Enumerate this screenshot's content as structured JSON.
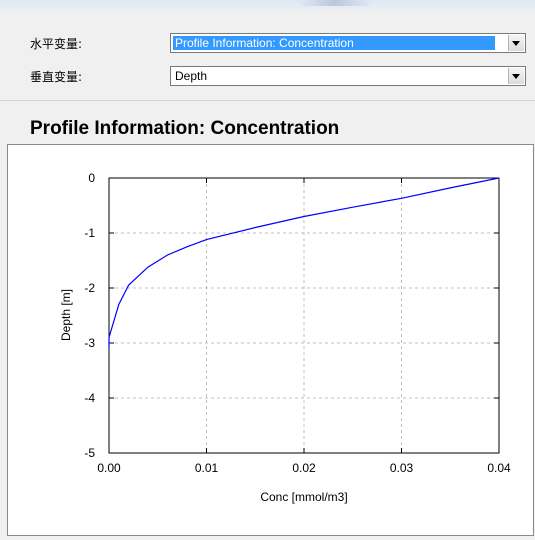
{
  "selectors": {
    "horizontal": {
      "label": "水平变量:",
      "value": "Profile Information:  Concentration"
    },
    "vertical": {
      "label": "垂直变量:",
      "value": "Depth"
    }
  },
  "plot": {
    "title": "Profile Information:  Concentration"
  },
  "icons": {
    "dropdown": "chevron-down-icon"
  },
  "colors": {
    "line": "#0000ff",
    "selection": "#3399ff"
  },
  "chart_data": {
    "type": "line",
    "title": "Profile Information:  Concentration",
    "xlabel": "Conc [mmol/m3]",
    "ylabel": "Depth [m]",
    "xlim": [
      0,
      0.04
    ],
    "ylim": [
      -5,
      0
    ],
    "grid": true,
    "xticks": [
      0,
      0.01,
      0.02,
      0.03,
      0.04
    ],
    "xtick_labels": [
      "0.00",
      "0.01",
      "0.02",
      "0.03",
      "0.04"
    ],
    "yticks": [
      0,
      -1,
      -2,
      -3,
      -4,
      -5
    ],
    "ytick_labels": [
      "0",
      "-1",
      "-2",
      "-3",
      "-4",
      "-5"
    ],
    "series": [
      {
        "x": [
          0.04,
          0.035,
          0.03,
          0.025,
          0.02,
          0.015,
          0.01,
          0.008,
          0.006,
          0.004,
          0.002,
          0.001,
          0.0,
          0.0
        ],
        "y": [
          0.0,
          -0.18,
          -0.37,
          -0.53,
          -0.7,
          -0.9,
          -1.12,
          -1.25,
          -1.4,
          -1.62,
          -1.95,
          -2.3,
          -2.9,
          -3.1
        ]
      }
    ]
  }
}
